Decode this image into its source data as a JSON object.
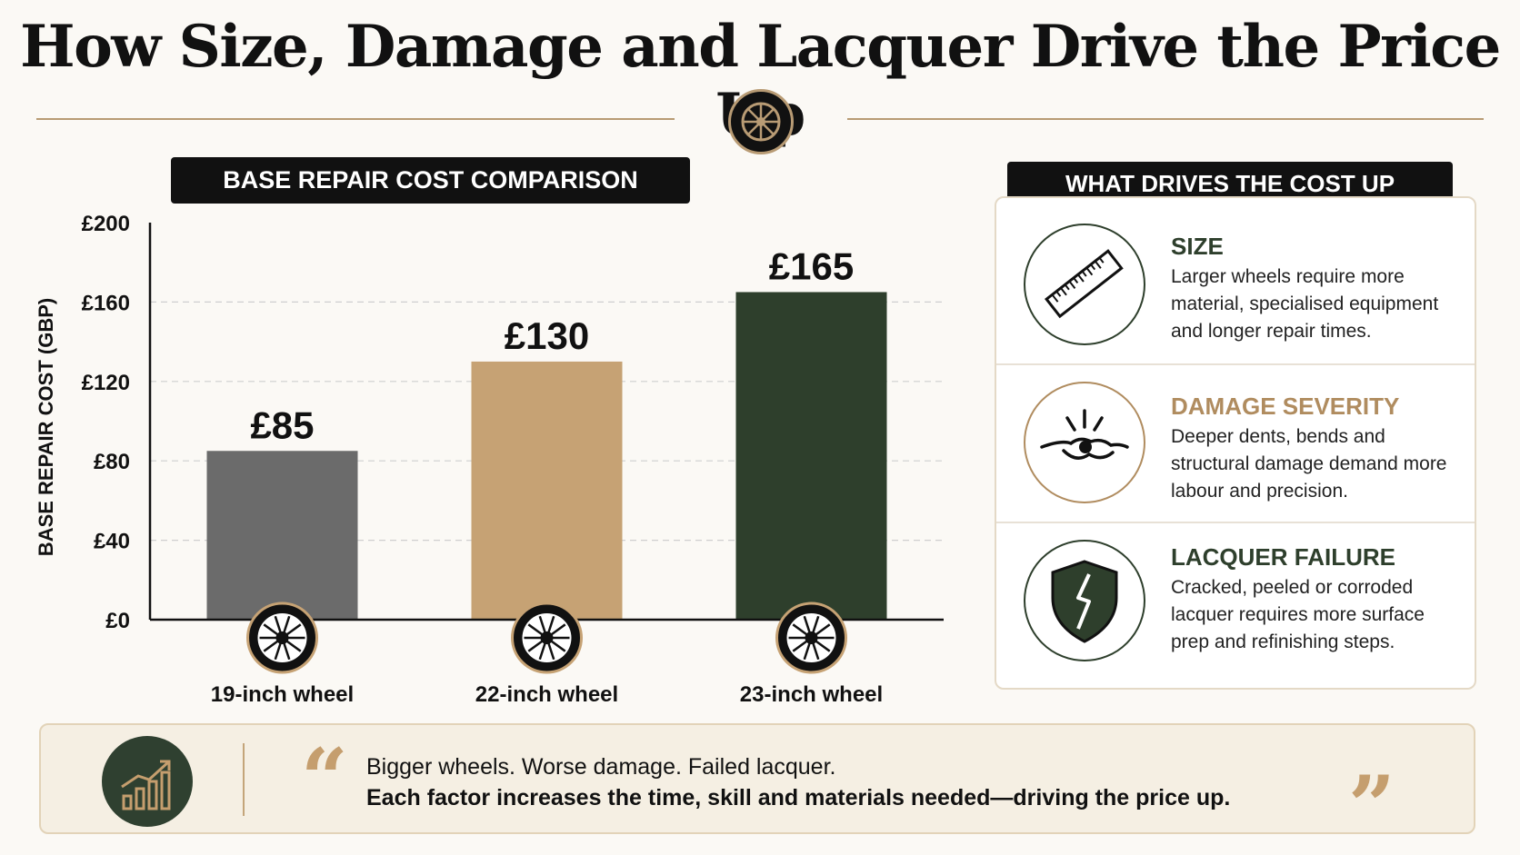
{
  "title": "How Size, Damage and Lacquer Drive the Price Up",
  "chart_panel_title": "BASE REPAIR COST COMPARISON",
  "chart_data": {
    "type": "bar",
    "categories": [
      "19-inch wheel",
      "22-inch wheel",
      "23-inch wheel"
    ],
    "values": [
      85,
      130,
      165
    ],
    "value_labels": [
      "£85",
      "£130",
      "£165"
    ],
    "ylabel": "BASE REPAIR COST (GBP)",
    "xlabel": "",
    "ylim": [
      0,
      200
    ],
    "yticks": [
      0,
      40,
      80,
      120,
      160,
      200
    ],
    "ytick_labels": [
      "£0",
      "£40",
      "£80",
      "£120",
      "£160",
      "£200"
    ],
    "grid": true,
    "bar_colors": [
      "#6b6b6b",
      "#c6a274",
      "#2e3f2c"
    ]
  },
  "drivers": {
    "heading": "WHAT DRIVES THE COST UP",
    "items": [
      {
        "title": "SIZE",
        "text": "Larger wheels require more material, specialised equipment and longer repair times.",
        "icon": "ruler-icon",
        "color": "#2e3f2c"
      },
      {
        "title": "DAMAGE SEVERITY",
        "text": "Deeper dents, bends and structural damage demand more labour and precision.",
        "icon": "impact-icon",
        "color": "#b08c5f"
      },
      {
        "title": "LACQUER FAILURE",
        "text": "Cracked, peeled or corroded lacquer requires more surface prep and refinishing steps.",
        "icon": "cracked-shield-icon",
        "color": "#2e3f2c"
      }
    ]
  },
  "footer": {
    "line1": "Bigger wheels. Worse damage. Failed lacquer.",
    "line2": "Each factor increases the time, skill and materials needed—driving the price up.",
    "icon": "rising-chart-icon"
  },
  "colors": {
    "accent_gold": "#b89b74",
    "dark_green": "#2e3f2c",
    "background": "#fbf9f5"
  }
}
